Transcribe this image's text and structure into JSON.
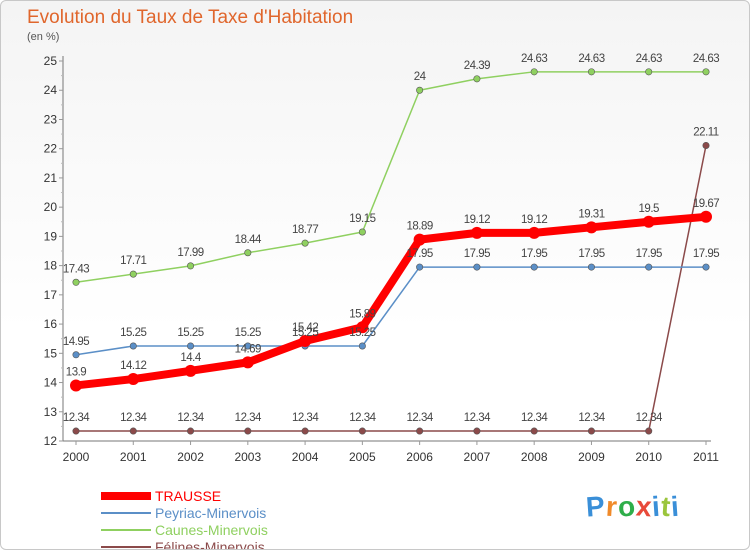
{
  "title": "Evolution du Taux de Taxe d'Habitation",
  "subtitle": "(en %)",
  "logo_text": "Proxiti",
  "chart_data": {
    "type": "line",
    "x": [
      "2000",
      "2001",
      "2002",
      "2003",
      "2004",
      "2005",
      "2006",
      "2007",
      "2008",
      "2009",
      "2010",
      "2011"
    ],
    "ylim": [
      12,
      25
    ],
    "yticks": [
      12,
      13,
      14,
      15,
      16,
      17,
      18,
      19,
      20,
      21,
      22,
      23,
      24,
      25
    ],
    "grid": false,
    "legend_position": "bottom-left",
    "series": [
      {
        "name": "TRAUSSE",
        "color": "#ff0000",
        "values": [
          13.9,
          14.12,
          14.4,
          14.69,
          15.42,
          15.89,
          18.89,
          19.12,
          19.12,
          19.31,
          19.5,
          19.67
        ],
        "labels": [
          "13.9",
          "14.12",
          "14.4",
          "14.69",
          "15.42",
          "15.89",
          "18.89",
          "19.12",
          "19.12",
          "19.31",
          "19.5",
          "19.67"
        ]
      },
      {
        "name": "Peyriac-Minervois",
        "color": "#5b8fc7",
        "values": [
          14.95,
          15.25,
          15.25,
          15.25,
          15.25,
          15.25,
          17.95,
          17.95,
          17.95,
          17.95,
          17.95,
          17.95
        ],
        "labels": [
          "14.95",
          "15.25",
          "15.25",
          "15.25",
          "15.25",
          "15.25",
          "17.95",
          "17.95",
          "17.95",
          "17.95",
          "17.95",
          "17.95"
        ]
      },
      {
        "name": "Caunes-Minervois",
        "color": "#8fd060",
        "values": [
          17.43,
          17.71,
          17.99,
          18.44,
          18.77,
          19.15,
          24,
          24.39,
          24.63,
          24.63,
          24.63,
          24.63
        ],
        "labels": [
          "17.43",
          "17.71",
          "17.99",
          "18.44",
          "18.77",
          "19.15",
          "24",
          "24.39",
          "24.63",
          "24.63",
          "24.63",
          "24.63"
        ]
      },
      {
        "name": "Félines-Minervois",
        "color": "#8b4a4a",
        "values": [
          12.34,
          12.34,
          12.34,
          12.34,
          12.34,
          12.34,
          12.34,
          12.34,
          12.34,
          12.34,
          12.34,
          22.11
        ],
        "labels": [
          "12.34",
          "12.34",
          "12.34",
          "12.34",
          "12.34",
          "12.34",
          "12.34",
          "12.34",
          "12.34",
          "12.34",
          "12.34",
          "22.11"
        ]
      }
    ]
  }
}
